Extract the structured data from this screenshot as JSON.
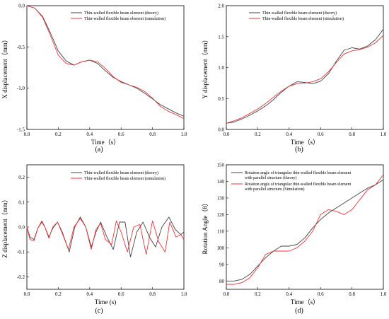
{
  "chart_data": [
    {
      "type": "line",
      "xlabel": "Time（s）",
      "ylabel": "X displacement（mm）",
      "panel_label": "(a)",
      "xlim": [
        0,
        1
      ],
      "ylim": [
        -1.5,
        0
      ],
      "xticks": [
        0,
        0.2,
        0.4,
        0.6,
        0.8,
        1
      ],
      "xtick_labels": [
        "0.0",
        "0.2",
        "0.4",
        "0.6",
        "0.8",
        "1.0"
      ],
      "yticks": [
        -1.5,
        -1,
        -0.5,
        0
      ],
      "ytick_labels": [
        "-1.5",
        "-1.0",
        "-0.5",
        "0.0"
      ],
      "legend_position": "top-right",
      "series": [
        {
          "name": "Thin-walled flexible beam element (theory)",
          "color": "#444444",
          "x": [
            0,
            0.05,
            0.1,
            0.15,
            0.2,
            0.25,
            0.3,
            0.35,
            0.4,
            0.45,
            0.5,
            0.55,
            0.6,
            0.65,
            0.7,
            0.75,
            0.8,
            0.85,
            0.9,
            0.95,
            1.0
          ],
          "y": [
            0,
            -0.03,
            -0.13,
            -0.33,
            -0.55,
            -0.67,
            -0.72,
            -0.68,
            -0.66,
            -0.7,
            -0.79,
            -0.87,
            -0.92,
            -0.96,
            -1.0,
            -1.06,
            -1.13,
            -1.2,
            -1.25,
            -1.3,
            -1.34
          ]
        },
        {
          "name": "Thin-walled flexible beam element (simulation)",
          "color": "#e8363a",
          "x": [
            0,
            0.05,
            0.1,
            0.15,
            0.2,
            0.25,
            0.3,
            0.35,
            0.4,
            0.45,
            0.5,
            0.55,
            0.6,
            0.65,
            0.7,
            0.75,
            0.8,
            0.85,
            0.9,
            0.95,
            1.0
          ],
          "y": [
            0,
            -0.03,
            -0.14,
            -0.36,
            -0.6,
            -0.7,
            -0.72,
            -0.68,
            -0.66,
            -0.68,
            -0.76,
            -0.86,
            -0.93,
            -0.96,
            -0.99,
            -1.04,
            -1.12,
            -1.22,
            -1.28,
            -1.32,
            -1.37
          ]
        }
      ]
    },
    {
      "type": "line",
      "xlabel": "Time（s）",
      "ylabel": "Y displacement（mm）",
      "panel_label": "(b)",
      "xlim": [
        0,
        1
      ],
      "ylim": [
        0,
        2
      ],
      "xticks": [
        0,
        0.2,
        0.4,
        0.6,
        0.8,
        1
      ],
      "xtick_labels": [
        "0.0",
        "0.2",
        "0.4",
        "0.6",
        "0.8",
        "1.0"
      ],
      "yticks": [
        0,
        0.5,
        1,
        1.5,
        2
      ],
      "ytick_labels": [
        "0.0",
        "0.5",
        "1.0",
        "1.5",
        "2.0"
      ],
      "legend_position": "top-right",
      "series": [
        {
          "name": "Thin-walled flexible beam element (theory)",
          "color": "#444444",
          "x": [
            0,
            0.05,
            0.1,
            0.15,
            0.2,
            0.25,
            0.3,
            0.35,
            0.4,
            0.45,
            0.5,
            0.55,
            0.6,
            0.65,
            0.7,
            0.75,
            0.8,
            0.85,
            0.9,
            0.95,
            1.0
          ],
          "y": [
            0.1,
            0.12,
            0.17,
            0.23,
            0.3,
            0.38,
            0.48,
            0.6,
            0.7,
            0.77,
            0.76,
            0.74,
            0.78,
            0.9,
            1.1,
            1.28,
            1.32,
            1.3,
            1.35,
            1.45,
            1.62
          ]
        },
        {
          "name": "Thin-walled flexible beam element (simulation)",
          "color": "#e8363a",
          "x": [
            0,
            0.05,
            0.1,
            0.15,
            0.2,
            0.25,
            0.3,
            0.35,
            0.4,
            0.45,
            0.5,
            0.55,
            0.6,
            0.65,
            0.7,
            0.75,
            0.8,
            0.85,
            0.9,
            0.95,
            1.0
          ],
          "y": [
            0.1,
            0.14,
            0.19,
            0.26,
            0.33,
            0.42,
            0.52,
            0.62,
            0.7,
            0.74,
            0.75,
            0.77,
            0.82,
            0.93,
            1.08,
            1.22,
            1.27,
            1.29,
            1.33,
            1.4,
            1.52
          ]
        }
      ]
    },
    {
      "type": "line",
      "xlabel": "Time (s)",
      "ylabel": "Z displacement（mm）",
      "panel_label": "(c)",
      "xlim": [
        0,
        1
      ],
      "ylim": [
        -0.25,
        0.25
      ],
      "xticks": [
        0,
        0.2,
        0.4,
        0.6,
        0.8,
        1
      ],
      "xtick_labels": [
        "0.0",
        "0.2",
        "0.4",
        "0.6",
        "0.8",
        "1.0"
      ],
      "yticks": [
        -0.2,
        -0.1,
        0,
        0.1,
        0.2
      ],
      "ytick_labels": [
        "-0.2",
        "-0.1",
        "0.0",
        "0.1",
        "0.2"
      ],
      "legend_position": "top-right",
      "series": [
        {
          "name": "Thin-walled flexible beam element (theory)",
          "color": "#444444",
          "x": [
            0,
            0.02,
            0.045,
            0.07,
            0.095,
            0.115,
            0.14,
            0.165,
            0.195,
            0.225,
            0.27,
            0.305,
            0.34,
            0.375,
            0.41,
            0.44,
            0.47,
            0.51,
            0.55,
            0.59,
            0.625,
            0.66,
            0.7,
            0.74,
            0.78,
            0.82,
            0.86,
            0.905,
            0.945,
            0.98,
            1.0
          ],
          "y": [
            0,
            -0.04,
            -0.05,
            -0.005,
            0.02,
            0,
            -0.04,
            -0.005,
            0.02,
            -0.02,
            -0.1,
            0,
            0.04,
            0,
            -0.08,
            -0.02,
            0.02,
            -0.04,
            -0.09,
            0.02,
            0.02,
            -0.12,
            -0.02,
            0.02,
            -0.04,
            -0.08,
            0,
            0.04,
            -0.01,
            -0.03,
            -0.02
          ]
        },
        {
          "name": "Thin-walled flexible beam element (simulation)",
          "color": "#e8363a",
          "x": [
            0,
            0.02,
            0.045,
            0.07,
            0.095,
            0.115,
            0.14,
            0.165,
            0.195,
            0.225,
            0.265,
            0.3,
            0.34,
            0.375,
            0.41,
            0.44,
            0.47,
            0.5,
            0.54,
            0.57,
            0.6,
            0.64,
            0.68,
            0.72,
            0.76,
            0.8,
            0.84,
            0.88,
            0.91,
            0.95,
            0.98,
            1.0
          ],
          "y": [
            0,
            -0.05,
            -0.055,
            -0.005,
            0.025,
            0,
            -0.045,
            0,
            0.02,
            -0.025,
            -0.09,
            0,
            0.035,
            0,
            -0.09,
            -0.01,
            0.015,
            -0.05,
            -0.07,
            0.025,
            -0.02,
            -0.1,
            0,
            0.01,
            -0.11,
            0.025,
            -0.06,
            -0.1,
            0.02,
            -0.04,
            -0.03,
            -0.05
          ]
        }
      ]
    },
    {
      "type": "line",
      "xlabel": "Time（s）",
      "ylabel": "Rotation Angle（θ）",
      "panel_label": "(d)",
      "xlim": [
        0,
        1
      ],
      "ylim": [
        75,
        150
      ],
      "xticks": [
        0,
        0.2,
        0.4,
        0.6,
        0.8,
        1
      ],
      "xtick_labels": [
        "0.0",
        "0.2",
        "0.4",
        "0.6",
        "0.8",
        "1.0"
      ],
      "yticks": [
        80,
        90,
        100,
        110,
        120,
        130,
        140,
        150
      ],
      "ytick_labels": [
        "80",
        "90",
        "100",
        "110",
        "120",
        "130",
        "140",
        "150"
      ],
      "legend_position": "top-left",
      "series": [
        {
          "name": "Rotation angle of triangular thin-walled flexible beam element",
          "name_line2": "with parallel structure (theory)",
          "color": "#444444",
          "x": [
            0,
            0.05,
            0.1,
            0.15,
            0.2,
            0.25,
            0.3,
            0.35,
            0.4,
            0.45,
            0.5,
            0.55,
            0.6,
            0.65,
            0.7,
            0.75,
            0.8,
            0.85,
            0.9,
            0.95,
            1.0
          ],
          "y": [
            80,
            80,
            81,
            84,
            89,
            94,
            98,
            101,
            101,
            102,
            106,
            112,
            117,
            121,
            124,
            127,
            130,
            133,
            136,
            138,
            141
          ]
        },
        {
          "name": "Rotation angle of triangular thin-walled flexible beam element",
          "name_line2": "with parallel structure (Simulation)",
          "color": "#e8363a",
          "x": [
            0,
            0.05,
            0.1,
            0.15,
            0.2,
            0.25,
            0.3,
            0.35,
            0.4,
            0.45,
            0.5,
            0.55,
            0.6,
            0.65,
            0.7,
            0.75,
            0.8,
            0.85,
            0.9,
            0.95,
            1.0
          ],
          "y": [
            78,
            78,
            79,
            82,
            88,
            96,
            98,
            98,
            98,
            100,
            104,
            110,
            120,
            123,
            122,
            120,
            123,
            129,
            135,
            138,
            144
          ]
        }
      ]
    }
  ]
}
